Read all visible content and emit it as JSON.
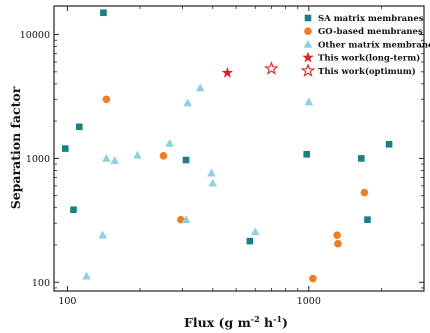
{
  "chart_data": {
    "type": "scatter",
    "title": "",
    "xlabel": "Flux (g m",
    "xlabel_sup1": "-2",
    "xlabel_mid": " h",
    "xlabel_sup2": "-1",
    "xlabel_end": ")",
    "ylabel": "Separation factor",
    "x_scale": "log",
    "y_scale": "log",
    "xlim": [
      88,
      3000
    ],
    "ylim": [
      85,
      17000
    ],
    "x_ticks": [
      100,
      1000
    ],
    "x_tick_labels": [
      "100",
      "1000"
    ],
    "y_ticks": [
      100,
      1000,
      10000
    ],
    "y_tick_labels": [
      "100",
      "1000",
      "10000"
    ],
    "grid": false,
    "legend_position": "top-right",
    "series": [
      {
        "name": "SA matrix membranes",
        "marker": "square",
        "color": "#1a7f86",
        "points": [
          {
            "x": 141,
            "y": 15000
          },
          {
            "x": 112,
            "y": 1800
          },
          {
            "x": 98,
            "y": 1200
          },
          {
            "x": 106,
            "y": 385
          },
          {
            "x": 310,
            "y": 970
          },
          {
            "x": 570,
            "y": 215
          },
          {
            "x": 980,
            "y": 1080
          },
          {
            "x": 1650,
            "y": 1000
          },
          {
            "x": 1750,
            "y": 320
          },
          {
            "x": 2150,
            "y": 1300
          }
        ]
      },
      {
        "name": "GO-based membranes",
        "marker": "circle",
        "color": "#ef7d22",
        "points": [
          {
            "x": 145,
            "y": 3000
          },
          {
            "x": 250,
            "y": 1050
          },
          {
            "x": 295,
            "y": 320
          },
          {
            "x": 1040,
            "y": 107
          },
          {
            "x": 1310,
            "y": 240
          },
          {
            "x": 1320,
            "y": 205
          },
          {
            "x": 1700,
            "y": 530
          }
        ]
      },
      {
        "name": "Other matrix membranes",
        "marker": "triangle",
        "color": "#8fd0df",
        "points": [
          {
            "x": 120,
            "y": 112
          },
          {
            "x": 140,
            "y": 240
          },
          {
            "x": 145,
            "y": 1000
          },
          {
            "x": 157,
            "y": 960
          },
          {
            "x": 195,
            "y": 1060
          },
          {
            "x": 265,
            "y": 1320
          },
          {
            "x": 310,
            "y": 320
          },
          {
            "x": 315,
            "y": 2800
          },
          {
            "x": 355,
            "y": 3700
          },
          {
            "x": 395,
            "y": 760
          },
          {
            "x": 400,
            "y": 630
          },
          {
            "x": 600,
            "y": 255
          },
          {
            "x": 1000,
            "y": 2850
          }
        ]
      },
      {
        "name": "This work(long-term)",
        "marker": "star-filled",
        "color": "#d62728",
        "points": [
          {
            "x": 460,
            "y": 4900
          }
        ]
      },
      {
        "name": "This work(optimum)",
        "marker": "star-open",
        "color": "#d62728",
        "points": [
          {
            "x": 700,
            "y": 5300
          }
        ]
      }
    ]
  }
}
